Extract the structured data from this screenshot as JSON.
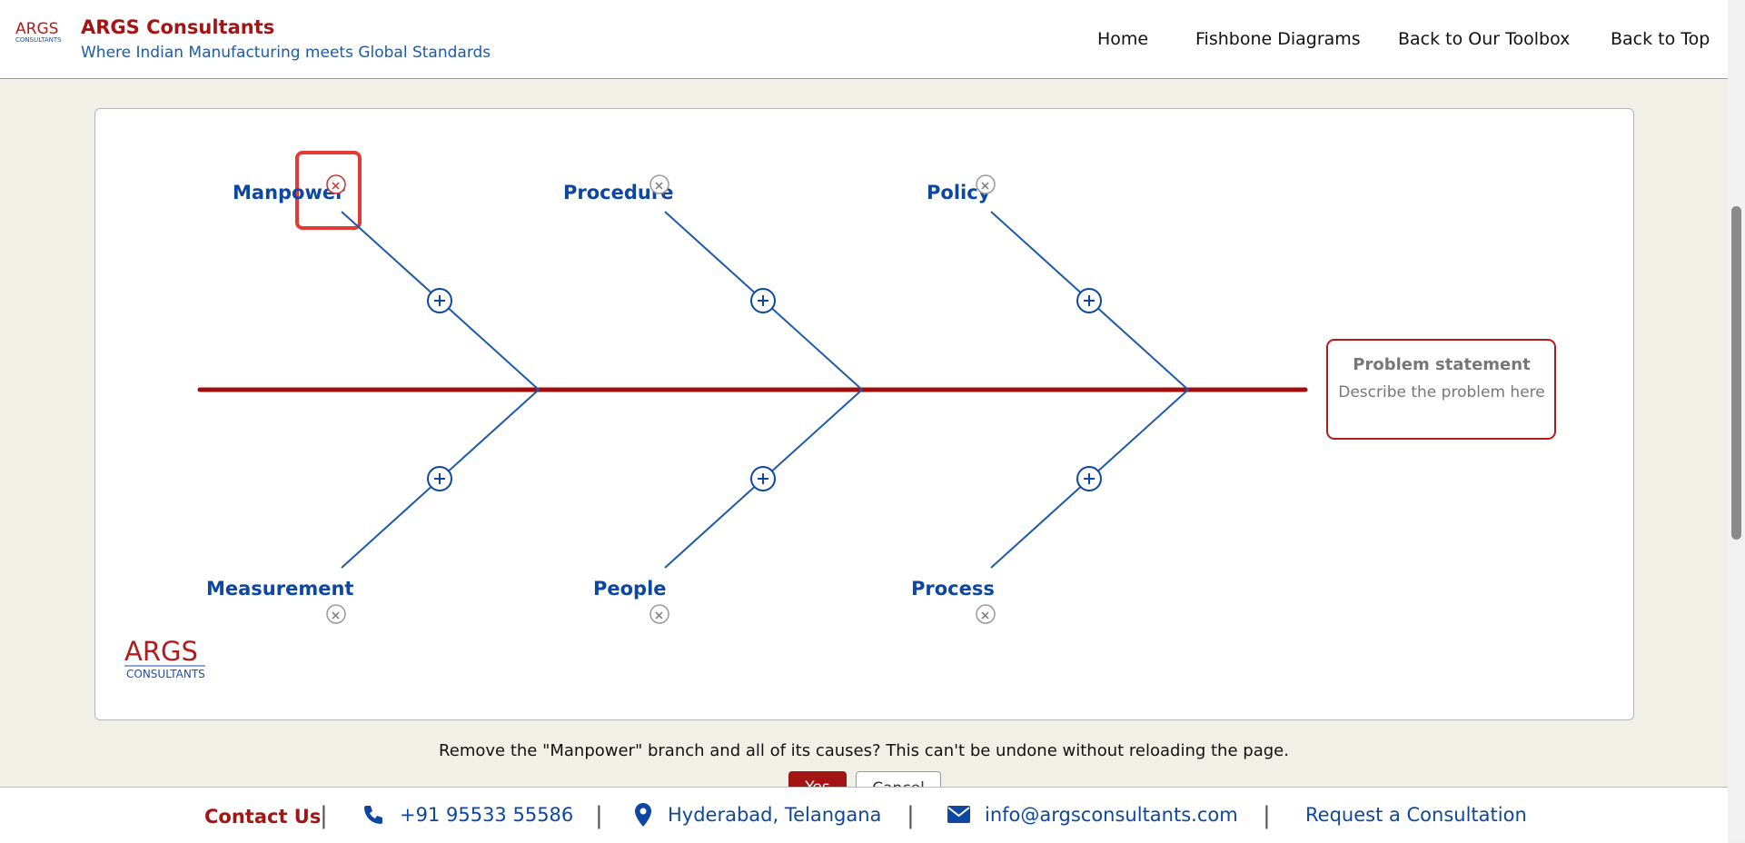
{
  "header": {
    "logo_text": "ARGS",
    "logo_sub": "CONSULTANTS",
    "title": "ARGS Consultants",
    "subtitle": "Where Indian Manufacturing meets Global Standards"
  },
  "nav": [
    "Home",
    "Fishbone Diagrams",
    "Back to Our Toolbox",
    "Back to Top"
  ],
  "diagram": {
    "top_branches": [
      "Manpower",
      "Procedure",
      "Policy"
    ],
    "bottom_branches": [
      "Measurement",
      "People",
      "Process"
    ],
    "problem_title": "Problem statement",
    "problem_placeholder": "Describe the problem here",
    "watermark": "ARGS",
    "watermark_sub": "CONSULTANTS"
  },
  "dialog": {
    "message": "Remove the \"Manpower\" branch and all of its causes? This can't be undone without reloading the page.",
    "confirm": "Yes",
    "cancel": "Cancel"
  },
  "footer": {
    "contact": "Contact Us",
    "phone": "+91 95533 55586",
    "location": "Hyderabad, Telangana",
    "email": "info@argsconsultants.com",
    "request": "Request a Consultation"
  }
}
